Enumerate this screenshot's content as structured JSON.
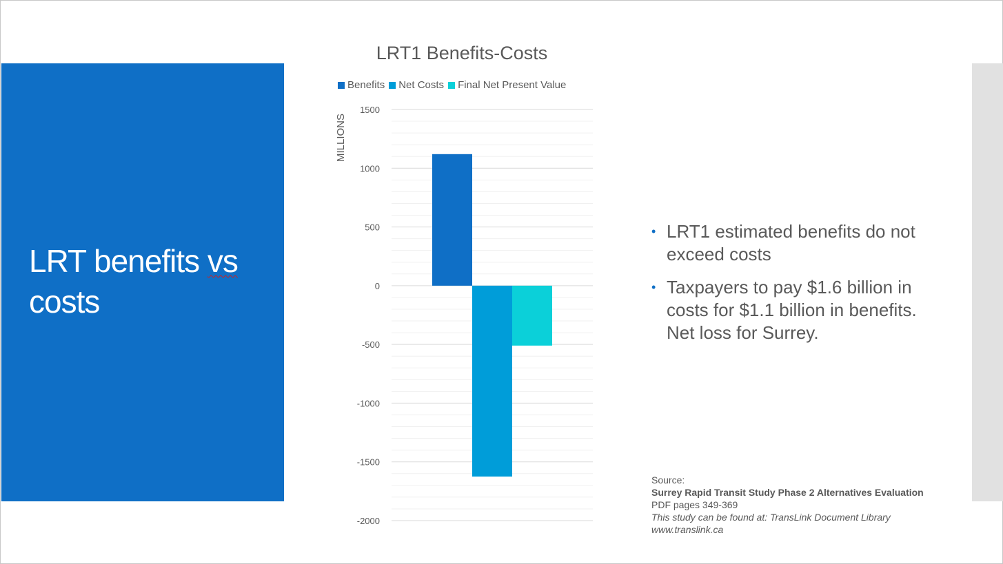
{
  "slide": {
    "title_line1_a": "LRT benefits ",
    "title_line1_b": "vs",
    "title_line2": "costs"
  },
  "bullets": [
    "LRT1 estimated benefits do not exceed costs",
    "Taxpayers to pay $1.6 billion in costs for $1.1 billion in benefits. Net loss for Surrey."
  ],
  "bullet_glyph": "•",
  "source": {
    "label": "Source:",
    "study": "Surrey Rapid Transit Study Phase 2 Alternatives Evaluation",
    "pages": "PDF pages 349-369",
    "location": "This study can be found at: TransLink Document Library",
    "url": "www.translink.ca"
  },
  "colors": {
    "accent": "#0F6FC6",
    "benefits": "#0F6FC6",
    "net_costs": "#009DD9",
    "final_npv": "#0BD0D9",
    "side_panel": "#e1e1e1"
  },
  "chart_data": {
    "type": "bar",
    "title": "LRT1 Benefits-Costs",
    "xlabel": "",
    "ylabel": "MILLIONS",
    "categories": [
      ""
    ],
    "series": [
      {
        "name": "Benefits",
        "values": [
          1120
        ],
        "color": "#0F6FC6"
      },
      {
        "name": "Net Costs",
        "values": [
          -1625
        ],
        "color": "#009DD9"
      },
      {
        "name": "Final Net Present Value",
        "values": [
          -510
        ],
        "color": "#0BD0D9"
      }
    ],
    "ylim": [
      -2000,
      1500
    ],
    "yticks": [
      1500,
      1000,
      500,
      0,
      -500,
      -1000,
      -1500,
      -2000
    ],
    "minor_grid_step": 100,
    "grid": true,
    "legend": "top"
  }
}
